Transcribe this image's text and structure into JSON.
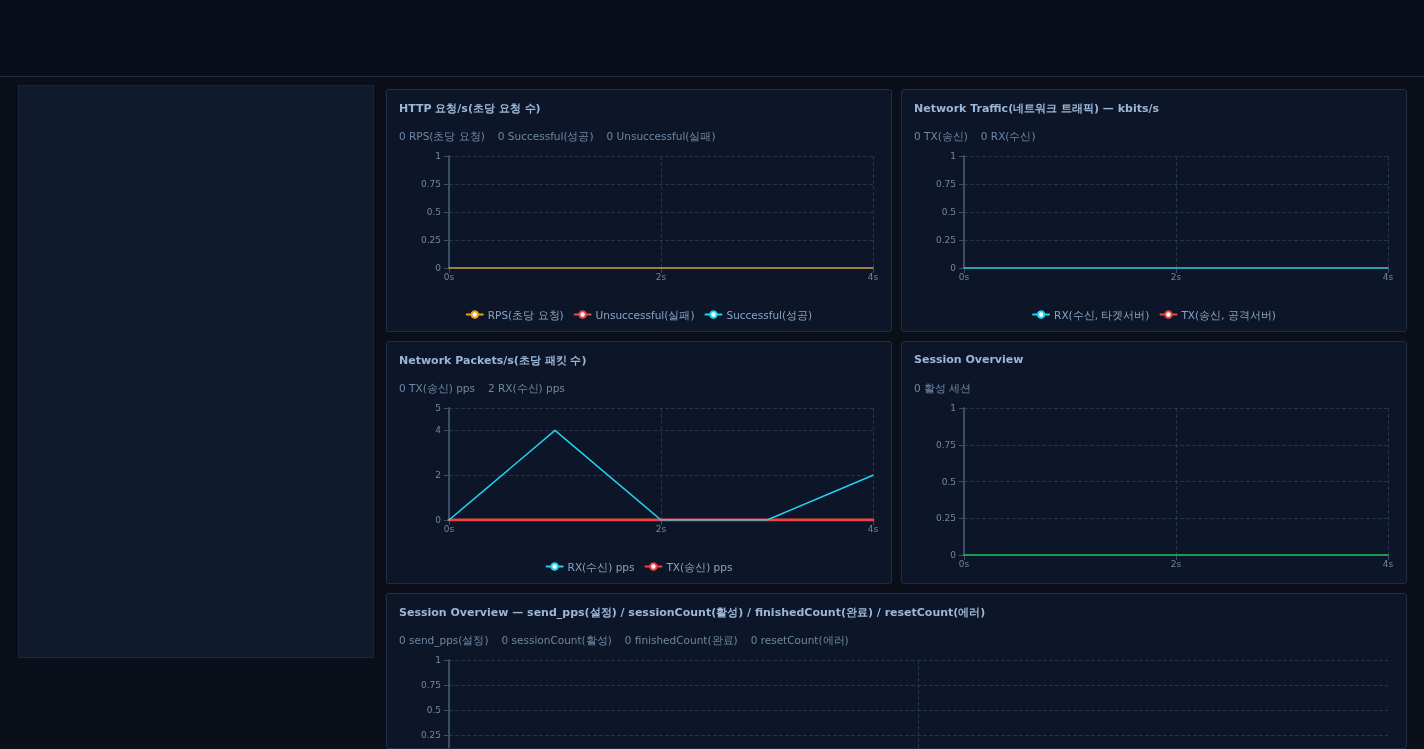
{
  "chart_data": [
    {
      "type": "line",
      "title": "HTTP 요청/s(초당 요청 수)",
      "annotations": [
        "0 RPS(초당 요청)",
        "0 Successful(성공)",
        "0 Unsuccessful(실패)"
      ],
      "x": [
        0,
        1,
        2,
        3,
        4
      ],
      "xlim": [
        0,
        4
      ],
      "xticks": [
        {
          "value": 0,
          "label": "0s"
        },
        {
          "value": 2,
          "label": "2s"
        },
        {
          "value": 4,
          "label": "4s"
        }
      ],
      "ylim": [
        0,
        1
      ],
      "yticks": [
        0,
        0.25,
        0.5,
        0.75,
        1
      ],
      "grid": true,
      "legend": "bottom",
      "marker": "none",
      "series": [
        {
          "name": "RPS(초당 요청)",
          "color": "#f59e0b",
          "values": [
            0,
            0,
            0,
            0,
            0
          ]
        },
        {
          "name": "Unsuccessful(실패)",
          "color": "#ef4444",
          "values": [
            null,
            null,
            null,
            null,
            null
          ]
        },
        {
          "name": "Successful(성공)",
          "color": "#22d3ee",
          "values": [
            null,
            null,
            null,
            null,
            null
          ]
        }
      ]
    },
    {
      "type": "line",
      "title": "Network Traffic(네트워크 트래픽) — kbits/s",
      "annotations": [
        "0 TX(송신)",
        "0 RX(수신)"
      ],
      "x": [
        0,
        1,
        2,
        3,
        4
      ],
      "xlim": [
        0,
        4
      ],
      "xticks": [
        {
          "value": 0,
          "label": "0s"
        },
        {
          "value": 2,
          "label": "2s"
        },
        {
          "value": 4,
          "label": "4s"
        }
      ],
      "ylim": [
        0,
        1
      ],
      "yticks": [
        0,
        0.25,
        0.5,
        0.75,
        1
      ],
      "grid": true,
      "legend": "bottom",
      "marker": "none",
      "series": [
        {
          "name": "RX(수신, 타겟서버)",
          "color": "#22d3ee",
          "values": [
            0,
            0,
            0,
            0,
            0
          ]
        },
        {
          "name": "TX(송신, 공격서버)",
          "color": "#ef4444",
          "values": [
            null,
            null,
            null,
            null,
            null
          ]
        }
      ]
    },
    {
      "type": "line",
      "title": "Network Packets/s(초당 패킷 수)",
      "annotations": [
        "0 TX(송신) pps",
        "2 RX(수신) pps"
      ],
      "x": [
        0,
        1,
        2,
        3,
        4
      ],
      "xlim": [
        0,
        4
      ],
      "xticks": [
        {
          "value": 0,
          "label": "0s"
        },
        {
          "value": 2,
          "label": "2s"
        },
        {
          "value": 4,
          "label": "4s"
        }
      ],
      "ylim": [
        0,
        5
      ],
      "yticks": [
        0,
        2,
        4,
        5
      ],
      "grid": true,
      "legend": "bottom",
      "marker": "none",
      "series": [
        {
          "name": "RX(수신) pps",
          "color": "#22d3ee",
          "values": [
            0,
            4,
            0,
            0,
            2
          ]
        },
        {
          "name": "TX(송신) pps",
          "color": "#ef4444",
          "values": [
            0,
            0,
            0,
            0,
            0
          ]
        }
      ]
    },
    {
      "type": "line",
      "title": "Session Overview",
      "annotations": [
        "0 활성 세션"
      ],
      "x": [
        0,
        1,
        2,
        3,
        4
      ],
      "xlim": [
        0,
        4
      ],
      "xticks": [
        {
          "value": 0,
          "label": "0s"
        },
        {
          "value": 2,
          "label": "2s"
        },
        {
          "value": 4,
          "label": "4s"
        }
      ],
      "ylim": [
        0,
        1
      ],
      "yticks": [
        0,
        0.25,
        0.5,
        0.75,
        1
      ],
      "grid": true,
      "marker": "none",
      "series": [
        {
          "color": "#22c55e",
          "values": [
            0,
            0,
            0,
            0,
            0
          ]
        }
      ]
    },
    {
      "type": "line",
      "categories": [
        null
      ],
      "title": "Session Overview — send_pps(설정) / sessionCount(활성) / finishedCount(완료) / resetCount(에러)",
      "annotations": [
        "0 send_pps(설정)",
        "0 sessionCount(활성)",
        "0 finishedCount(완료)",
        "0 resetCount(에러)"
      ],
      "ylim": [
        0,
        1
      ],
      "yticks": [
        0.25,
        0.5,
        0.75,
        1
      ],
      "grid": true,
      "tick_labels": "y"
    }
  ]
}
